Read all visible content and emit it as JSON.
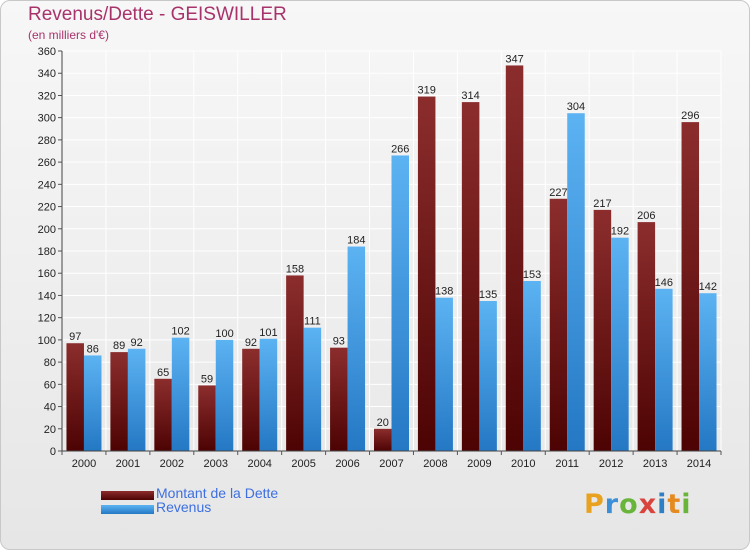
{
  "header": {
    "title": "Revenus/Dette - GEISWILLER",
    "subtitle": "(en milliers d'€)"
  },
  "chart_data": {
    "type": "bar",
    "categories": [
      "2000",
      "2001",
      "2002",
      "2003",
      "2004",
      "2005",
      "2006",
      "2007",
      "2008",
      "2009",
      "2010",
      "2011",
      "2012",
      "2013",
      "2014"
    ],
    "series": [
      {
        "name": "Montant de la Dette",
        "color": "#7a1515",
        "values": [
          97,
          89,
          65,
          59,
          92,
          158,
          93,
          20,
          319,
          314,
          347,
          227,
          217,
          206,
          296
        ]
      },
      {
        "name": "Revenus",
        "color": "#4aa3e6",
        "values": [
          86,
          92,
          102,
          100,
          101,
          111,
          184,
          266,
          138,
          135,
          153,
          304,
          192,
          146,
          142
        ]
      }
    ],
    "ylim": [
      0,
      360
    ],
    "ytick_step": 20,
    "grid": true,
    "legend_position": "bottom-left",
    "data_labels": true
  },
  "legend": {
    "items": [
      {
        "label": "Montant de la Dette",
        "color": "#7a1515"
      },
      {
        "label": "Revenus",
        "color": "#4aa3e6"
      }
    ]
  },
  "logo": {
    "letters": [
      "P",
      "r",
      "o",
      "x",
      "i",
      "t",
      "i"
    ],
    "colors": [
      "#e8a21f",
      "#3a8fd6",
      "#69b53b",
      "#d9433c",
      "#2f7fc4",
      "#e58a1f",
      "#69b53b"
    ]
  }
}
